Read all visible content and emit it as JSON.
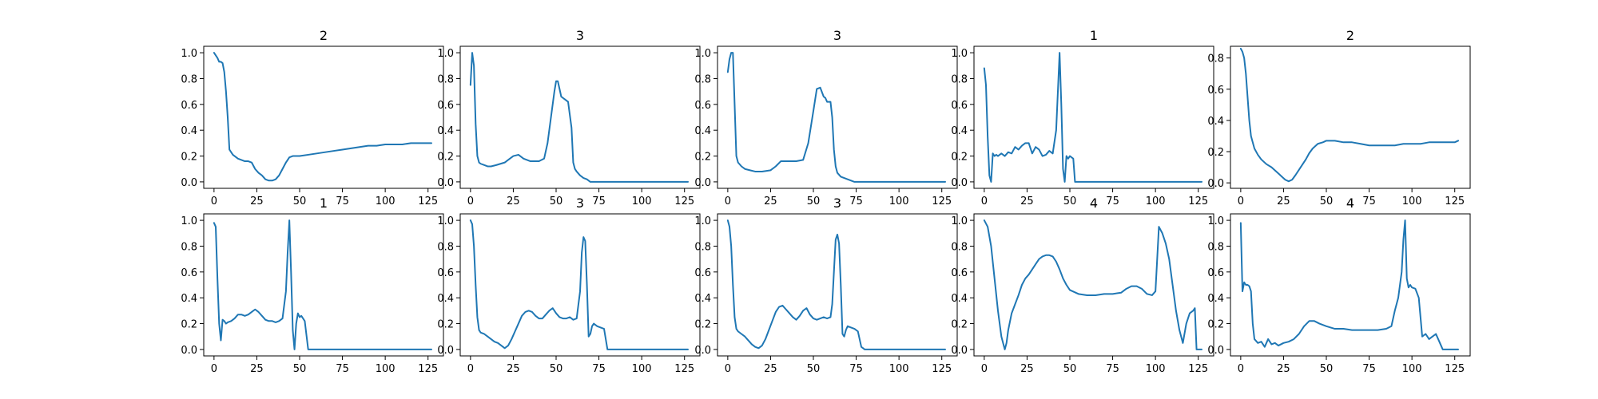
{
  "chart_data": [
    {
      "type": "line",
      "title": "2",
      "xlim": [
        -6,
        134
      ],
      "ylim": [
        -0.05,
        1.05
      ],
      "xticks": [
        0,
        25,
        50,
        75,
        100,
        125
      ],
      "yticks": [
        0.0,
        0.2,
        0.4,
        0.6,
        0.8,
        1.0
      ],
      "x": [
        0,
        1,
        2,
        3,
        4,
        5,
        6,
        7,
        8,
        9,
        10,
        11,
        12,
        14,
        16,
        18,
        20,
        22,
        24,
        26,
        28,
        30,
        32,
        34,
        36,
        38,
        40,
        42,
        44,
        46,
        48,
        50,
        55,
        60,
        65,
        70,
        75,
        80,
        85,
        90,
        95,
        100,
        105,
        110,
        115,
        120,
        125,
        127
      ],
      "y": [
        1.0,
        0.98,
        0.96,
        0.93,
        0.93,
        0.92,
        0.85,
        0.7,
        0.5,
        0.25,
        0.23,
        0.21,
        0.2,
        0.18,
        0.17,
        0.16,
        0.16,
        0.15,
        0.1,
        0.07,
        0.05,
        0.02,
        0.01,
        0.01,
        0.02,
        0.05,
        0.1,
        0.15,
        0.19,
        0.2,
        0.2,
        0.2,
        0.21,
        0.22,
        0.23,
        0.24,
        0.25,
        0.26,
        0.27,
        0.28,
        0.28,
        0.29,
        0.29,
        0.29,
        0.3,
        0.3,
        0.3,
        0.3
      ],
      "color": "#1f77b4"
    },
    {
      "type": "line",
      "title": "3",
      "xlim": [
        -6,
        134
      ],
      "ylim": [
        -0.05,
        1.05
      ],
      "xticks": [
        0,
        25,
        50,
        75,
        100,
        125
      ],
      "yticks": [
        0.0,
        0.2,
        0.4,
        0.6,
        0.8,
        1.0
      ],
      "x": [
        0,
        1,
        2,
        3,
        4,
        5,
        6,
        8,
        10,
        12,
        15,
        20,
        25,
        28,
        31,
        35,
        40,
        43,
        45,
        47,
        49,
        50,
        51,
        52,
        53,
        55,
        57,
        59,
        60,
        61,
        62,
        64,
        66,
        68,
        70,
        72,
        127
      ],
      "y": [
        0.75,
        1.0,
        0.9,
        0.45,
        0.2,
        0.15,
        0.14,
        0.13,
        0.12,
        0.12,
        0.13,
        0.15,
        0.2,
        0.21,
        0.18,
        0.16,
        0.16,
        0.18,
        0.3,
        0.5,
        0.7,
        0.78,
        0.78,
        0.72,
        0.66,
        0.64,
        0.62,
        0.42,
        0.15,
        0.1,
        0.08,
        0.05,
        0.03,
        0.02,
        0.0,
        0.0,
        0.0
      ],
      "color": "#1f77b4"
    },
    {
      "type": "line",
      "title": "3",
      "xlim": [
        -6,
        134
      ],
      "ylim": [
        -0.05,
        1.05
      ],
      "xticks": [
        0,
        25,
        50,
        75,
        100,
        125
      ],
      "yticks": [
        0.0,
        0.2,
        0.4,
        0.6,
        0.8,
        1.0
      ],
      "x": [
        0,
        1,
        2,
        3,
        4,
        5,
        6,
        8,
        10,
        13,
        16,
        20,
        25,
        28,
        31,
        35,
        40,
        44,
        47,
        50,
        52,
        54,
        56,
        57,
        58,
        60,
        61,
        62,
        63,
        64,
        66,
        68,
        70,
        72,
        74,
        127
      ],
      "y": [
        0.85,
        0.95,
        1.0,
        1.0,
        0.6,
        0.2,
        0.15,
        0.12,
        0.1,
        0.09,
        0.08,
        0.08,
        0.09,
        0.12,
        0.16,
        0.16,
        0.16,
        0.17,
        0.3,
        0.55,
        0.72,
        0.73,
        0.66,
        0.65,
        0.62,
        0.62,
        0.5,
        0.25,
        0.12,
        0.07,
        0.04,
        0.03,
        0.02,
        0.01,
        0.0,
        0.0
      ],
      "color": "#1f77b4"
    },
    {
      "type": "line",
      "title": "1",
      "xlim": [
        -6,
        134
      ],
      "ylim": [
        -0.05,
        1.05
      ],
      "xticks": [
        0,
        25,
        50,
        75,
        100,
        125
      ],
      "yticks": [
        0.0,
        0.2,
        0.4,
        0.6,
        0.8,
        1.0
      ],
      "x": [
        0,
        1,
        2,
        3,
        4,
        5,
        6,
        7,
        8,
        10,
        12,
        14,
        16,
        18,
        20,
        22,
        24,
        26,
        28,
        30,
        32,
        34,
        36,
        38,
        40,
        42,
        43,
        44,
        45,
        46,
        47,
        48,
        49,
        50,
        51,
        52,
        53,
        127
      ],
      "y": [
        0.88,
        0.75,
        0.35,
        0.05,
        0.0,
        0.22,
        0.2,
        0.21,
        0.2,
        0.22,
        0.2,
        0.23,
        0.22,
        0.27,
        0.25,
        0.28,
        0.3,
        0.3,
        0.22,
        0.27,
        0.25,
        0.2,
        0.21,
        0.24,
        0.22,
        0.4,
        0.7,
        1.0,
        0.6,
        0.1,
        0.0,
        0.2,
        0.18,
        0.2,
        0.19,
        0.18,
        0.0,
        0.0
      ],
      "color": "#1f77b4"
    },
    {
      "type": "line",
      "title": "2",
      "xlim": [
        -6,
        134
      ],
      "ylim": [
        -0.035,
        0.875
      ],
      "xticks": [
        0,
        25,
        50,
        75,
        100,
        125
      ],
      "yticks": [
        0.0,
        0.2,
        0.4,
        0.6,
        0.8
      ],
      "x": [
        0,
        1,
        2,
        3,
        4,
        5,
        6,
        8,
        10,
        12,
        15,
        18,
        20,
        22,
        24,
        26,
        28,
        30,
        32,
        35,
        38,
        40,
        42,
        45,
        48,
        50,
        55,
        60,
        65,
        70,
        75,
        80,
        85,
        90,
        95,
        100,
        105,
        110,
        115,
        120,
        125,
        127
      ],
      "y": [
        0.86,
        0.84,
        0.8,
        0.7,
        0.55,
        0.4,
        0.3,
        0.22,
        0.18,
        0.15,
        0.12,
        0.1,
        0.08,
        0.06,
        0.04,
        0.02,
        0.01,
        0.02,
        0.05,
        0.1,
        0.15,
        0.19,
        0.22,
        0.25,
        0.26,
        0.27,
        0.27,
        0.26,
        0.26,
        0.25,
        0.24,
        0.24,
        0.24,
        0.24,
        0.25,
        0.25,
        0.25,
        0.26,
        0.26,
        0.26,
        0.26,
        0.27
      ],
      "color": "#1f77b4"
    },
    {
      "type": "line",
      "title": "1",
      "xlim": [
        -6,
        134
      ],
      "ylim": [
        -0.05,
        1.05
      ],
      "xticks": [
        0,
        25,
        50,
        75,
        100,
        125
      ],
      "yticks": [
        0.0,
        0.2,
        0.4,
        0.6,
        0.8,
        1.0
      ],
      "x": [
        0,
        1,
        2,
        3,
        4,
        5,
        6,
        7,
        8,
        10,
        12,
        14,
        16,
        18,
        20,
        22,
        24,
        26,
        28,
        30,
        32,
        34,
        36,
        38,
        40,
        42,
        43,
        44,
        45,
        46,
        47,
        48,
        49,
        50,
        51,
        52,
        53,
        55,
        127
      ],
      "y": [
        0.98,
        0.95,
        0.55,
        0.2,
        0.07,
        0.23,
        0.22,
        0.2,
        0.21,
        0.22,
        0.24,
        0.27,
        0.27,
        0.26,
        0.27,
        0.29,
        0.31,
        0.29,
        0.26,
        0.23,
        0.22,
        0.22,
        0.21,
        0.22,
        0.24,
        0.45,
        0.75,
        1.0,
        0.6,
        0.15,
        0.0,
        0.2,
        0.28,
        0.25,
        0.26,
        0.24,
        0.22,
        0.0,
        0.0
      ],
      "color": "#1f77b4"
    },
    {
      "type": "line",
      "title": "3",
      "xlim": [
        -6,
        134
      ],
      "ylim": [
        -0.05,
        1.05
      ],
      "xticks": [
        0,
        25,
        50,
        75,
        100,
        125
      ],
      "yticks": [
        0.0,
        0.2,
        0.4,
        0.6,
        0.8,
        1.0
      ],
      "x": [
        0,
        1,
        2,
        3,
        4,
        5,
        6,
        8,
        10,
        12,
        14,
        16,
        18,
        20,
        22,
        24,
        26,
        28,
        30,
        32,
        34,
        36,
        38,
        40,
        42,
        44,
        46,
        48,
        50,
        52,
        54,
        56,
        58,
        60,
        62,
        64,
        65,
        66,
        67,
        68,
        69,
        70,
        71,
        72,
        74,
        76,
        78,
        80,
        82,
        127
      ],
      "y": [
        1.0,
        0.97,
        0.8,
        0.5,
        0.25,
        0.15,
        0.13,
        0.12,
        0.1,
        0.08,
        0.06,
        0.05,
        0.03,
        0.01,
        0.03,
        0.08,
        0.14,
        0.2,
        0.26,
        0.29,
        0.3,
        0.29,
        0.26,
        0.24,
        0.24,
        0.27,
        0.3,
        0.32,
        0.28,
        0.25,
        0.24,
        0.24,
        0.25,
        0.23,
        0.24,
        0.45,
        0.75,
        0.87,
        0.84,
        0.5,
        0.1,
        0.12,
        0.18,
        0.2,
        0.18,
        0.17,
        0.16,
        0.0,
        0.0,
        0.0
      ],
      "color": "#1f77b4"
    },
    {
      "type": "line",
      "title": "3",
      "xlim": [
        -6,
        134
      ],
      "ylim": [
        -0.05,
        1.05
      ],
      "xticks": [
        0,
        25,
        50,
        75,
        100,
        125
      ],
      "yticks": [
        0.0,
        0.2,
        0.4,
        0.6,
        0.8,
        1.0
      ],
      "x": [
        0,
        1,
        2,
        3,
        4,
        5,
        6,
        8,
        10,
        12,
        14,
        16,
        18,
        20,
        22,
        24,
        26,
        28,
        30,
        32,
        34,
        36,
        38,
        40,
        42,
        44,
        46,
        48,
        50,
        52,
        54,
        56,
        58,
        60,
        61,
        62,
        63,
        64,
        65,
        66,
        67,
        68,
        69,
        70,
        72,
        74,
        76,
        78,
        80,
        82,
        127
      ],
      "y": [
        1.0,
        0.95,
        0.8,
        0.5,
        0.25,
        0.16,
        0.14,
        0.12,
        0.1,
        0.07,
        0.04,
        0.02,
        0.01,
        0.03,
        0.08,
        0.15,
        0.22,
        0.29,
        0.33,
        0.34,
        0.31,
        0.28,
        0.25,
        0.23,
        0.26,
        0.3,
        0.32,
        0.27,
        0.24,
        0.23,
        0.24,
        0.25,
        0.24,
        0.25,
        0.35,
        0.6,
        0.85,
        0.89,
        0.82,
        0.5,
        0.12,
        0.1,
        0.15,
        0.18,
        0.17,
        0.16,
        0.14,
        0.02,
        0.0,
        0.0,
        0.0
      ],
      "color": "#1f77b4"
    },
    {
      "type": "line",
      "title": "4",
      "xlim": [
        -6,
        134
      ],
      "ylim": [
        -0.05,
        1.05
      ],
      "xticks": [
        0,
        25,
        50,
        75,
        100,
        125
      ],
      "yticks": [
        0.0,
        0.2,
        0.4,
        0.6,
        0.8,
        1.0
      ],
      "x": [
        0,
        2,
        4,
        6,
        8,
        10,
        11,
        12,
        13,
        14,
        16,
        18,
        20,
        22,
        24,
        26,
        28,
        30,
        32,
        34,
        36,
        38,
        40,
        42,
        44,
        46,
        48,
        50,
        55,
        60,
        65,
        70,
        75,
        80,
        83,
        86,
        89,
        92,
        95,
        98,
        100,
        101,
        102,
        104,
        106,
        108,
        110,
        112,
        114,
        116,
        118,
        120,
        122,
        123,
        124,
        127
      ],
      "y": [
        1.0,
        0.95,
        0.8,
        0.55,
        0.3,
        0.1,
        0.05,
        0.0,
        0.05,
        0.15,
        0.28,
        0.35,
        0.42,
        0.5,
        0.55,
        0.58,
        0.62,
        0.66,
        0.7,
        0.72,
        0.73,
        0.73,
        0.72,
        0.68,
        0.62,
        0.55,
        0.5,
        0.46,
        0.43,
        0.42,
        0.42,
        0.43,
        0.43,
        0.44,
        0.47,
        0.49,
        0.49,
        0.47,
        0.43,
        0.42,
        0.45,
        0.7,
        0.95,
        0.9,
        0.82,
        0.7,
        0.5,
        0.3,
        0.15,
        0.05,
        0.2,
        0.28,
        0.3,
        0.32,
        0.0,
        0.0
      ],
      "color": "#1f77b4"
    },
    {
      "type": "line",
      "title": "4",
      "xlim": [
        -6,
        134
      ],
      "ylim": [
        -0.05,
        1.05
      ],
      "xticks": [
        0,
        25,
        50,
        75,
        100,
        125
      ],
      "yticks": [
        0.0,
        0.2,
        0.4,
        0.6,
        0.8,
        1.0
      ],
      "x": [
        0,
        1,
        2,
        3,
        4,
        5,
        6,
        7,
        8,
        10,
        12,
        14,
        16,
        18,
        20,
        22,
        25,
        28,
        31,
        34,
        37,
        40,
        43,
        46,
        50,
        55,
        60,
        65,
        70,
        75,
        80,
        85,
        88,
        90,
        92,
        94,
        95,
        96,
        97,
        98,
        99,
        100,
        102,
        104,
        106,
        108,
        110,
        112,
        114,
        116,
        118,
        120,
        125,
        127
      ],
      "y": [
        0.98,
        0.45,
        0.52,
        0.5,
        0.5,
        0.49,
        0.45,
        0.2,
        0.08,
        0.05,
        0.06,
        0.02,
        0.08,
        0.04,
        0.05,
        0.03,
        0.05,
        0.06,
        0.08,
        0.12,
        0.18,
        0.22,
        0.22,
        0.2,
        0.18,
        0.16,
        0.16,
        0.15,
        0.15,
        0.15,
        0.15,
        0.16,
        0.18,
        0.3,
        0.4,
        0.6,
        0.85,
        1.0,
        0.55,
        0.48,
        0.5,
        0.48,
        0.47,
        0.4,
        0.1,
        0.12,
        0.08,
        0.1,
        0.12,
        0.06,
        0.0,
        0.0,
        0.0,
        0.0
      ],
      "color": "#1f77b4"
    }
  ]
}
